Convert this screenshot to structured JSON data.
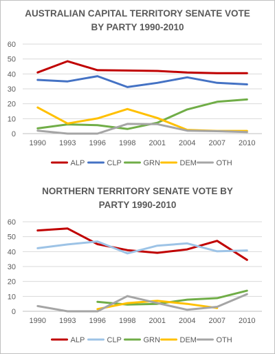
{
  "chart_data": [
    {
      "type": "line",
      "title_line1": "AUSTRALIAN CAPITAL TERRITORY SENATE VOTE",
      "title_line2": "BY PARTY 1990-2010",
      "categories": [
        "1990",
        "1993",
        "1996",
        "1998",
        "2001",
        "2004",
        "2007",
        "2010"
      ],
      "ylim": [
        0,
        60
      ],
      "yticks": [
        "0",
        "10",
        "20",
        "30",
        "40",
        "50",
        "60"
      ],
      "grid": true,
      "legend_position": "bottom",
      "series": [
        {
          "name": "ALP",
          "color": "#c00000",
          "values": [
            41,
            48.5,
            42.5,
            42.3,
            42,
            41,
            40.5,
            40.5
          ]
        },
        {
          "name": "CLP",
          "color": "#4472c4",
          "values": [
            36,
            35,
            38.5,
            31.2,
            34,
            37.7,
            34,
            33
          ]
        },
        {
          "name": "GRN",
          "color": "#70ad47",
          "values": [
            3.5,
            6.2,
            5.7,
            3.1,
            7.3,
            16.2,
            21.3,
            22.9
          ]
        },
        {
          "name": "DEM",
          "color": "#ffc000",
          "values": [
            17.5,
            6.8,
            10.2,
            16.5,
            10.5,
            2.5,
            1.8,
            1.8
          ]
        },
        {
          "name": "OTH",
          "color": "#a5a5a5",
          "values": [
            2,
            0,
            0,
            6.5,
            6.3,
            2,
            1.6,
            1
          ]
        }
      ]
    },
    {
      "type": "line",
      "title_line1": "NORTHERN TERRITORY SENATE VOTE BY",
      "title_line2": "PARTY 1990-2010",
      "categories": [
        "1990",
        "1993",
        "1996",
        "1998",
        "2001",
        "2004",
        "2007",
        "2010"
      ],
      "ylim": [
        0,
        60
      ],
      "yticks": [
        "0",
        "10",
        "20",
        "30",
        "40",
        "50",
        "60"
      ],
      "grid": true,
      "legend_position": "bottom",
      "series": [
        {
          "name": "ALP",
          "color": "#c00000",
          "values": [
            54.2,
            55.5,
            45,
            41,
            39.2,
            41.5,
            47.2,
            34.5
          ]
        },
        {
          "name": "CLP",
          "color": "#9dc3e6",
          "values": [
            42.3,
            44.8,
            46.8,
            38.8,
            44,
            45.5,
            40.2,
            40.8
          ]
        },
        {
          "name": "GRN",
          "color": "#70ad47",
          "values": [
            null,
            null,
            6.3,
            4.5,
            5,
            7.8,
            8.8,
            13.8
          ]
        },
        {
          "name": "DEM",
          "color": "#ffc000",
          "values": [
            null,
            null,
            1.5,
            5.5,
            7,
            5,
            2.2,
            null
          ]
        },
        {
          "name": "OTH",
          "color": "#a5a5a5",
          "values": [
            3.5,
            0,
            0,
            10.2,
            5.5,
            1,
            3,
            11.5
          ]
        }
      ]
    }
  ]
}
